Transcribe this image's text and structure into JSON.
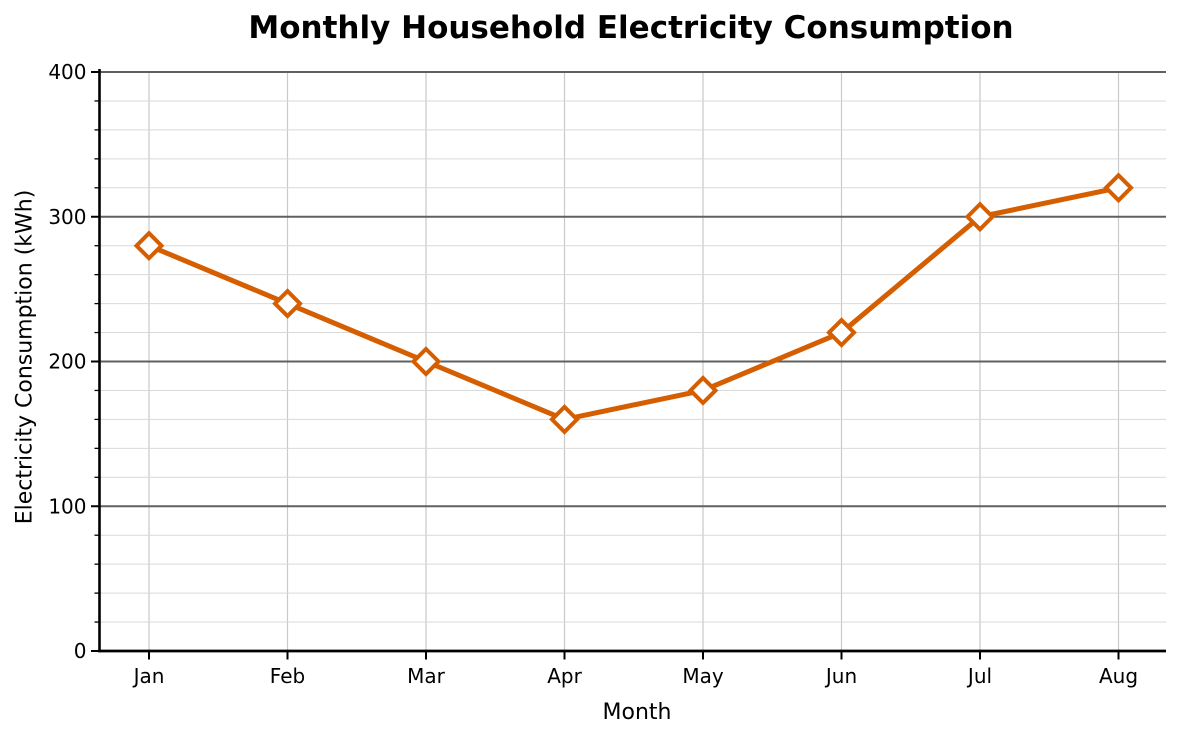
{
  "chart": {
    "title": "Monthly Household Electricity Consumption",
    "xlabel": "Month",
    "ylabel": "Electricity Consumption (kWh)"
  },
  "chart_data": {
    "type": "line",
    "title": "Monthly Household Electricity Consumption",
    "xlabel": "Month",
    "ylabel": "Electricity Consumption (kWh)",
    "categories": [
      "Jan",
      "Feb",
      "Mar",
      "Apr",
      "May",
      "Jun",
      "Jul",
      "Aug"
    ],
    "series": [
      {
        "name": "Electricity Consumption (kWh)",
        "values": [
          280,
          240,
          200,
          160,
          180,
          220,
          300,
          320
        ]
      }
    ],
    "ylim": [
      0,
      400
    ],
    "yticks_major": [
      0,
      100,
      200,
      300,
      400
    ],
    "ytick_minor_step": 20,
    "grid": true,
    "legend_visible": false,
    "marker": "diamond",
    "colors": {
      "line": "#D55E00",
      "marker_fill": "#FFFFFF",
      "major_grid": "#606060",
      "minor_grid": "#D9D9D9",
      "vertical_grid": "#C9C9C9",
      "axis": "#000000",
      "text": "#000000",
      "background": "#FFFFFF"
    }
  }
}
